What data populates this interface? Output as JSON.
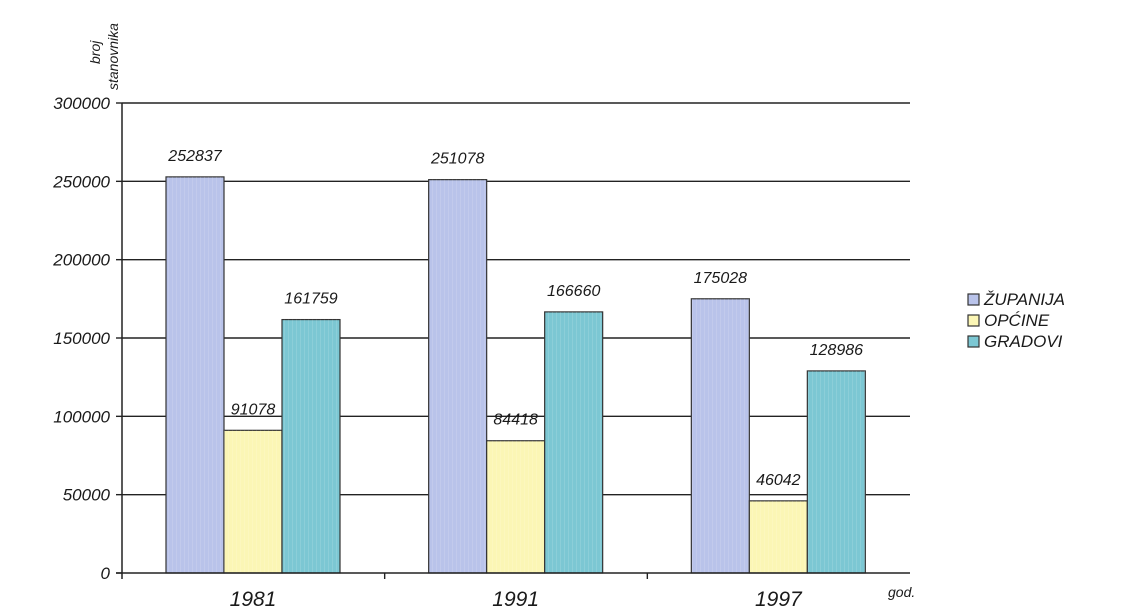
{
  "chart_data": {
    "type": "bar",
    "title": "",
    "ylabel": "broj stanovnika",
    "ylabel_lines": [
      "broj",
      "stanovnika"
    ],
    "xlabel": "god.",
    "categories": [
      "1981",
      "1991",
      "1997"
    ],
    "ylim": [
      0,
      300000
    ],
    "yticks": [
      0,
      50000,
      100000,
      150000,
      200000,
      250000,
      300000
    ],
    "ytick_labels": [
      "0",
      "50000",
      "100000",
      "150000",
      "200000",
      "250000",
      "300000"
    ],
    "grid": true,
    "legend_position": "right",
    "series": [
      {
        "name": "ŽUPANIJA",
        "color": "#b9c3ea",
        "values": [
          252837,
          251078,
          175028
        ],
        "labels": [
          "252837",
          "251078",
          "175028"
        ]
      },
      {
        "name": "OPĆINE",
        "color": "#fbf6b5",
        "values": [
          91078,
          84418,
          46042
        ],
        "labels": [
          "91078",
          "84418",
          "46042"
        ]
      },
      {
        "name": "GRADOVI",
        "color": "#7cc7d3",
        "values": [
          161759,
          166660,
          128986
        ],
        "labels": [
          "161759",
          "166660",
          "128986"
        ]
      }
    ]
  }
}
